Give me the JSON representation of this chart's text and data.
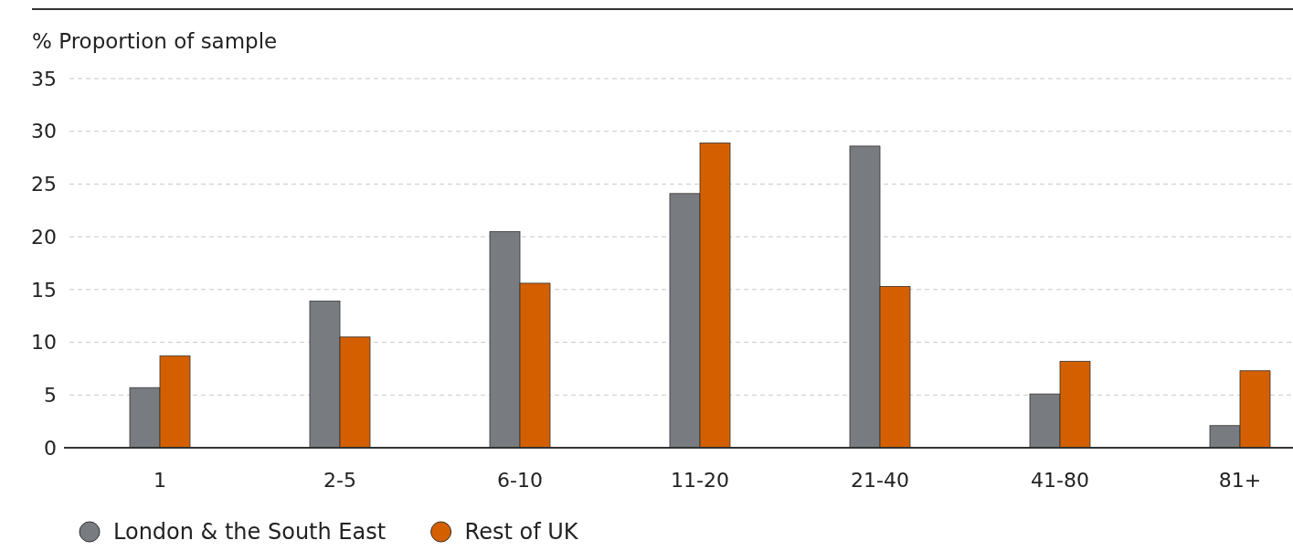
{
  "chart_data": {
    "type": "bar",
    "ylabel": "% Proportion of sample",
    "categories": [
      "1",
      "2-5",
      "6-10",
      "11-20",
      "21-40",
      "41-80",
      "81+"
    ],
    "series": [
      {
        "name": "London & the South East",
        "color": "#787b7f",
        "values": [
          5.7,
          13.9,
          20.5,
          24.1,
          28.6,
          5.1,
          2.1
        ]
      },
      {
        "name": "Rest of UK",
        "color": "#d45f00",
        "values": [
          8.7,
          10.5,
          15.6,
          28.9,
          15.3,
          8.2,
          7.3
        ]
      }
    ],
    "ylim": [
      0,
      35
    ],
    "yticks": [
      0,
      5,
      10,
      15,
      20,
      25,
      30,
      35
    ],
    "grid": "y",
    "legend": "bottom"
  }
}
